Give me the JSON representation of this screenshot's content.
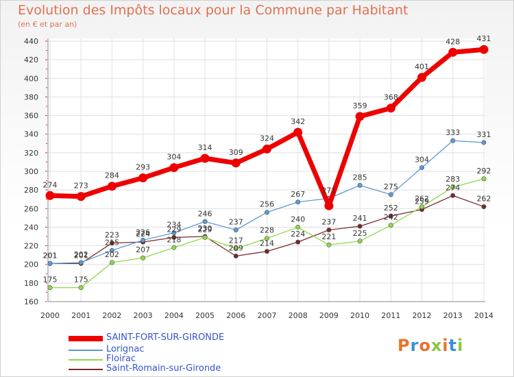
{
  "header": {
    "title": "Evolution des Impôts locaux pour la Commune par Habitant",
    "subtitle": "(en € et par an)"
  },
  "logo": {
    "text": "Proxiti",
    "colors": [
      "#e8742a",
      "#3b8fd8",
      "#e8742a",
      "#8cc63f",
      "#e8742a",
      "#3b8fd8",
      "#8cc63f"
    ]
  },
  "chart_data": {
    "type": "line",
    "x": [
      2000,
      2001,
      2002,
      2003,
      2004,
      2005,
      2006,
      2007,
      2008,
      2009,
      2010,
      2011,
      2012,
      2013,
      2014
    ],
    "ylim": [
      160,
      440
    ],
    "yticks": [
      160,
      180,
      200,
      220,
      240,
      260,
      280,
      300,
      320,
      340,
      360,
      380,
      400,
      420,
      440
    ],
    "grid": true,
    "legend_position": "bottom-left",
    "series": [
      {
        "name": "SAINT-FORT-SUR-GIRONDE",
        "color": "#ee0000",
        "values": [
          274,
          273,
          284,
          293,
          304,
          314,
          309,
          324,
          342,
          263,
          359,
          368,
          401,
          428,
          431
        ],
        "labels": [
          "274",
          "273",
          "284",
          "293",
          "304",
          "314",
          "309",
          "324",
          "342",
          "",
          "359",
          "368",
          "401",
          "428",
          "431"
        ]
      },
      {
        "name": "Lorignac",
        "color": "#5b9bd5",
        "values": [
          201,
          202,
          215,
          226,
          234,
          246,
          237,
          256,
          267,
          271,
          285,
          275,
          304,
          333,
          331
        ],
        "labels": [
          "201",
          "202",
          "215",
          "226",
          "234",
          "246",
          "237",
          "256",
          "267",
          "271",
          "285",
          "275",
          "304",
          "333",
          "331"
        ]
      },
      {
        "name": "Floirac",
        "color": "#8fd84a",
        "values": [
          175,
          175,
          202,
          207,
          218,
          229,
          217,
          228,
          240,
          221,
          225,
          242,
          262,
          283,
          292
        ],
        "labels": [
          "175",
          "175",
          "202",
          "207",
          "218",
          "229",
          "217",
          "228",
          "240",
          "221",
          "225",
          "242",
          "262",
          "283",
          "292"
        ]
      },
      {
        "name": "Saint-Romain-sur-Gironde",
        "color": "#7a2a2a",
        "values": [
          201,
          201,
          223,
          224,
          229,
          230,
          209,
          214,
          224,
          237,
          241,
          252,
          259,
          274,
          262
        ],
        "labels": [
          "201",
          "201",
          "223",
          "224",
          "229",
          "230",
          "209",
          "214",
          "224",
          "237",
          "241",
          "252",
          "259",
          "274",
          "262"
        ]
      }
    ]
  }
}
